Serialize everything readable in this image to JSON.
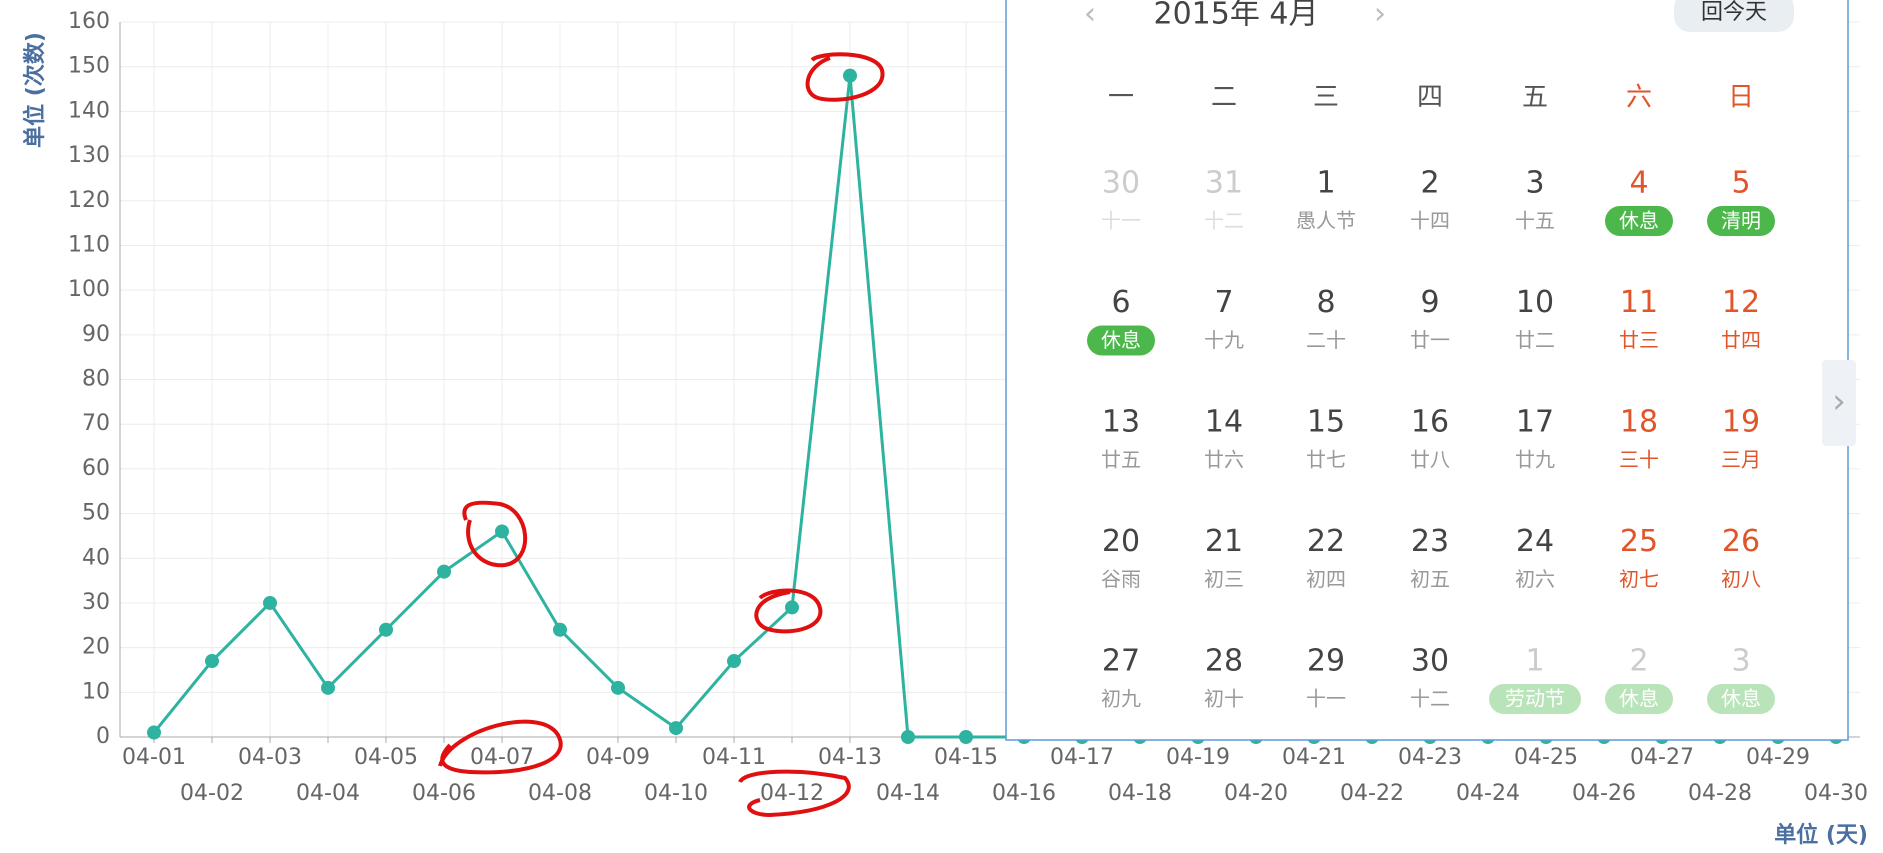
{
  "chart_data": {
    "type": "line",
    "ylabel": "单位 (次数)",
    "xlabel": "单位 (天)",
    "categories": [
      "04-01",
      "04-02",
      "04-03",
      "04-04",
      "04-05",
      "04-06",
      "04-07",
      "04-08",
      "04-09",
      "04-10",
      "04-11",
      "04-12",
      "04-13",
      "04-14",
      "04-15",
      "04-16",
      "04-17",
      "04-18",
      "04-19",
      "04-20",
      "04-21",
      "04-22",
      "04-23",
      "04-24",
      "04-25",
      "04-26",
      "04-27",
      "04-28",
      "04-29",
      "04-30"
    ],
    "values": [
      1,
      17,
      30,
      11,
      24,
      37,
      46,
      24,
      11,
      2,
      17,
      29,
      148,
      0,
      0,
      0,
      0,
      0,
      0,
      0,
      0,
      0,
      0,
      0,
      0,
      0,
      0,
      0,
      0,
      0
    ],
    "color": "#2db3a0",
    "ylim": [
      0,
      160
    ],
    "yticks": [
      0,
      10,
      20,
      30,
      40,
      50,
      60,
      70,
      80,
      90,
      100,
      110,
      120,
      130,
      140,
      150,
      160
    ],
    "grid": true
  },
  "calendar": {
    "prev": "‹",
    "title": "2015年  4月",
    "next": "›",
    "today_button": "回今天",
    "side_arrow": "›",
    "weekdays": [
      "一",
      "二",
      "三",
      "四",
      "五",
      "六",
      "日"
    ],
    "weeks": [
      [
        {
          "day": "30",
          "lunar": "十一"
        },
        {
          "day": "31",
          "lunar": "十二"
        },
        {
          "day": "1",
          "lunar": "愚人节"
        },
        {
          "day": "2",
          "lunar": "十四"
        },
        {
          "day": "3",
          "lunar": "十五"
        },
        {
          "day": "4",
          "holiday": "休息"
        },
        {
          "day": "5",
          "holiday": "清明"
        }
      ],
      [
        {
          "day": "6",
          "holiday": "休息"
        },
        {
          "day": "7",
          "lunar": "十九"
        },
        {
          "day": "8",
          "lunar": "二十"
        },
        {
          "day": "9",
          "lunar": "廿一"
        },
        {
          "day": "10",
          "lunar": "廿二"
        },
        {
          "day": "11",
          "lunar": "廿三"
        },
        {
          "day": "12",
          "lunar": "廿四"
        }
      ],
      [
        {
          "day": "13",
          "lunar": "廿五"
        },
        {
          "day": "14",
          "lunar": "廿六"
        },
        {
          "day": "15",
          "lunar": "廿七"
        },
        {
          "day": "16",
          "lunar": "廿八"
        },
        {
          "day": "17",
          "lunar": "廿九"
        },
        {
          "day": "18",
          "lunar": "三十"
        },
        {
          "day": "19",
          "lunar": "三月"
        }
      ],
      [
        {
          "day": "20",
          "lunar": "谷雨"
        },
        {
          "day": "21",
          "lunar": "初三"
        },
        {
          "day": "22",
          "lunar": "初四"
        },
        {
          "day": "23",
          "lunar": "初五"
        },
        {
          "day": "24",
          "lunar": "初六"
        },
        {
          "day": "25",
          "lunar": "初七"
        },
        {
          "day": "26",
          "lunar": "初八"
        }
      ],
      [
        {
          "day": "27",
          "lunar": "初九"
        },
        {
          "day": "28",
          "lunar": "初十"
        },
        {
          "day": "29",
          "lunar": "十一"
        },
        {
          "day": "30",
          "lunar": "十二"
        },
        {
          "day": "1",
          "holiday": "劳动节"
        },
        {
          "day": "2",
          "holiday": "休息"
        },
        {
          "day": "3",
          "holiday": "休息"
        }
      ]
    ]
  }
}
